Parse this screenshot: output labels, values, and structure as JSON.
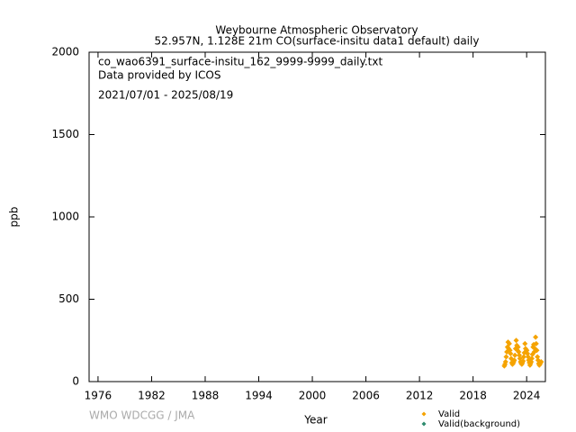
{
  "chart_data": {
    "type": "scatter",
    "title": "Weybourne Atmospheric Observatory",
    "subtitle": "52.957N, 1.128E 21m    CO(surface-insitu data1 default) daily",
    "annotations": [
      "co_wao6391_surface-insitu_162_9999-9999_daily.txt",
      "Data provided by ICOS",
      "2021/07/01 - 2025/08/19"
    ],
    "xlabel": "Year",
    "ylabel": "ppb",
    "watermark": "WMO WDCGG / JMA",
    "xlim": [
      1975,
      2026.1
    ],
    "xticks": [
      1976,
      1982,
      1988,
      1994,
      2000,
      2006,
      2012,
      2018,
      2024
    ],
    "ylim": [
      0,
      2000
    ],
    "yticks": [
      0,
      500,
      1000,
      1500,
      2000
    ],
    "legend": "bottom-right",
    "series": [
      {
        "name": "Valid",
        "color": "#f5a300",
        "x": [
          2021.5,
          2021.57,
          2021.64,
          2021.71,
          2021.78,
          2021.85,
          2021.92,
          2021.99,
          2022.06,
          2022.13,
          2022.2,
          2022.27,
          2022.34,
          2022.41,
          2022.48,
          2022.55,
          2022.62,
          2022.69,
          2022.76,
          2022.83,
          2022.9,
          2022.97,
          2023.04,
          2023.11,
          2023.18,
          2023.25,
          2023.32,
          2023.39,
          2023.46,
          2023.53,
          2023.6,
          2023.67,
          2023.74,
          2023.81,
          2023.88,
          2023.95,
          2024.02,
          2024.09,
          2024.16,
          2024.23,
          2024.3,
          2024.37,
          2024.44,
          2024.51,
          2024.58,
          2024.65,
          2024.72,
          2024.79,
          2024.86,
          2024.93,
          2025.0,
          2025.07,
          2025.14,
          2025.21,
          2025.28,
          2025.35,
          2025.42,
          2025.49,
          2025.56,
          2025.63
        ],
        "values": [
          95,
          105,
          120,
          150,
          180,
          210,
          240,
          200,
          230,
          190,
          170,
          140,
          115,
          105,
          110,
          120,
          130,
          160,
          200,
          250,
          220,
          190,
          210,
          180,
          160,
          140,
          120,
          110,
          105,
          115,
          125,
          150,
          175,
          230,
          200,
          185,
          190,
          170,
          150,
          130,
          115,
          100,
          110,
          120,
          140,
          165,
          210,
          225,
          180,
          200,
          270,
          230,
          190,
          150,
          130,
          110,
          100,
          105,
          115,
          120
        ]
      },
      {
        "name": "Valid(background)",
        "color": "#2e8b6e",
        "x": [],
        "values": []
      }
    ]
  }
}
